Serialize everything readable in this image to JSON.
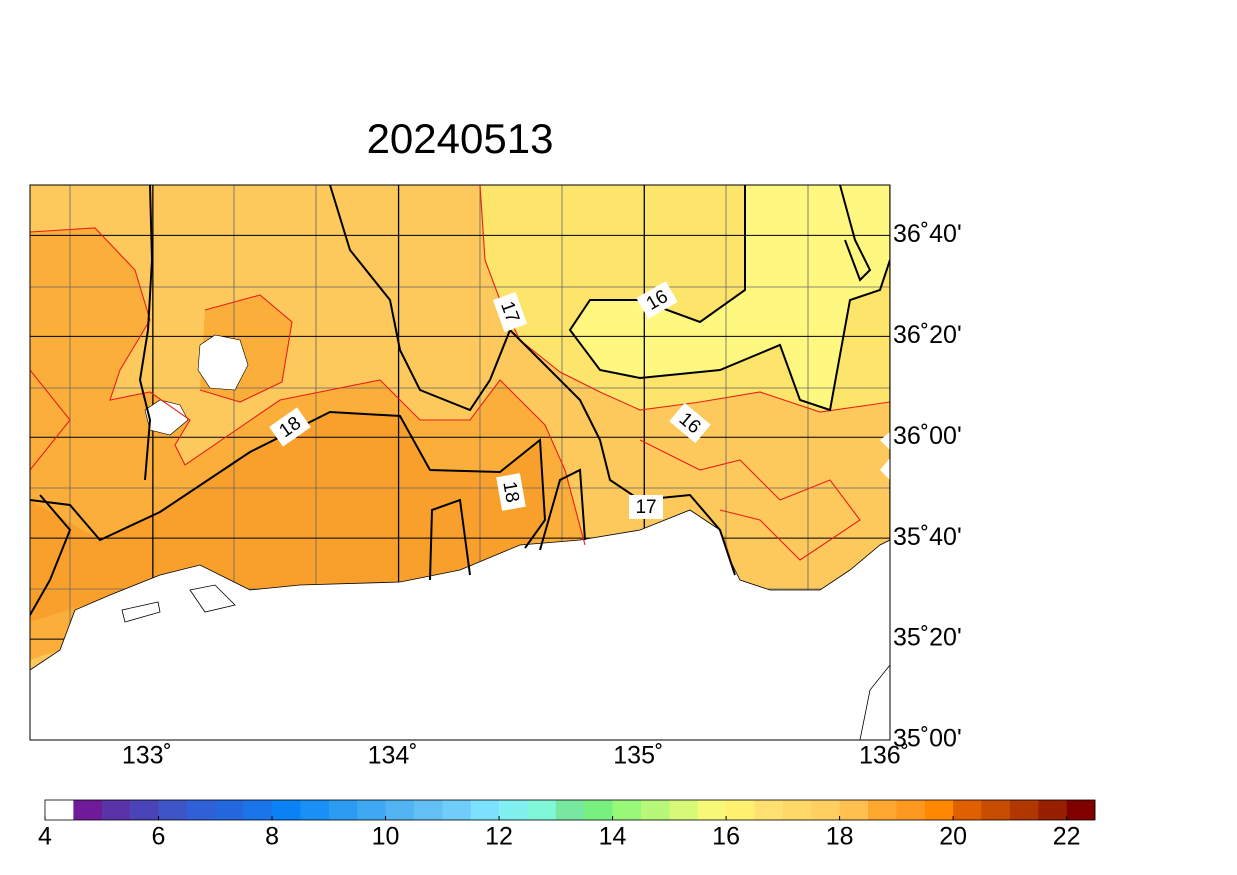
{
  "title": "20240513",
  "map": {
    "lon_lim": [
      132.5,
      136
    ],
    "lat_lim": [
      35,
      36.8333
    ],
    "lon_ticks": [
      {
        "value": 133,
        "label": "133˚"
      },
      {
        "value": 134,
        "label": "134˚"
      },
      {
        "value": 135,
        "label": "135˚"
      },
      {
        "value": 136,
        "label": "136˚"
      }
    ],
    "lat_ticks": [
      {
        "value": 35,
        "label": "35˚00'"
      },
      {
        "value": 35.3333,
        "label": "35˚20'"
      },
      {
        "value": 35.6667,
        "label": "35˚40'"
      },
      {
        "value": 36,
        "label": "36˚00'"
      },
      {
        "value": 36.3333,
        "label": "36˚20'"
      },
      {
        "value": 36.6667,
        "label": "36˚40'"
      }
    ],
    "contour_labels": [
      "16",
      "16",
      "17",
      "17",
      "18",
      "18"
    ]
  },
  "colorbar": {
    "lim": [
      4,
      22.5
    ],
    "ticks": [
      4,
      6,
      8,
      10,
      12,
      14,
      16,
      18,
      20,
      22
    ],
    "colors": [
      "#ffffff",
      "#6f1a99",
      "#5b33a8",
      "#4b44b8",
      "#3e55c8",
      "#3060d8",
      "#2468e0",
      "#1a74ea",
      "#0a82f5",
      "#1890f5",
      "#2b9cf2",
      "#3ea8f2",
      "#52b4f2",
      "#62c0f4",
      "#70ccf8",
      "#7ce0ff",
      "#80f0f0",
      "#80f8d8",
      "#78e8a0",
      "#78f080",
      "#98f878",
      "#b8f878",
      "#d8f878",
      "#f8f878",
      "#fff070",
      "#ffe070",
      "#ffd868",
      "#ffd060",
      "#ffc050",
      "#ffa830",
      "#ff9820",
      "#ff8800",
      "#e06000",
      "#c84c00",
      "#b03800",
      "#982000",
      "#800000"
    ]
  }
}
